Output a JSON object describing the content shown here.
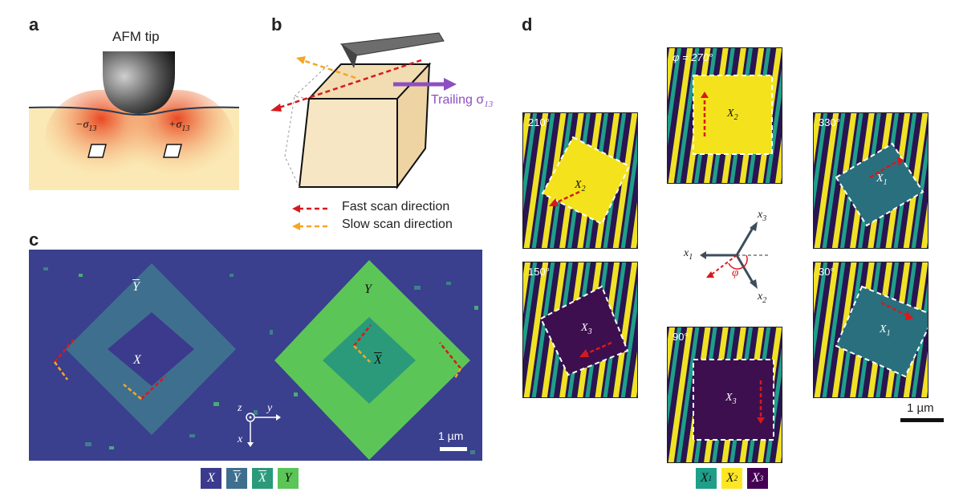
{
  "panels": {
    "a": {
      "label": "a",
      "tip_label": "AFM tip",
      "left_stress": "−σ",
      "left_stress_sub": "13",
      "right_stress": "+σ",
      "right_stress_sub": "13"
    },
    "b": {
      "label": "b",
      "trailing": "Trailing σ",
      "trailing_sub": "13",
      "fast_scan": "Fast scan direction",
      "slow_scan": "Slow scan direction",
      "fast_color": "#d7191c",
      "slow_color": "#f5a623"
    },
    "c": {
      "label": "c",
      "domains": {
        "ybar": "Y",
        "x": "X",
        "y": "Y",
        "xbar": "X"
      },
      "axes": {
        "z": "z",
        "y": "y",
        "x": "x"
      },
      "scale": "1 µm",
      "legend": [
        {
          "text": "X",
          "color": "#3b3a8c",
          "overline": false
        },
        {
          "text": "Y",
          "color": "#3f6f8f",
          "overline": true
        },
        {
          "text": "X",
          "color": "#2a9a7b",
          "overline": true
        },
        {
          "text": "Y",
          "color": "#5cc558",
          "overline": false
        }
      ]
    },
    "d": {
      "label": "d",
      "tiles": [
        {
          "angle": "φ = 270°",
          "variant": "X",
          "variant_sub": "2"
        },
        {
          "angle": "210°",
          "variant": "X",
          "variant_sub": "2"
        },
        {
          "angle": "330°",
          "variant": "X",
          "variant_sub": "1"
        },
        {
          "angle": "150°",
          "variant": "X",
          "variant_sub": "3"
        },
        {
          "angle": "30°",
          "variant": "X",
          "variant_sub": "1"
        },
        {
          "angle": "90°",
          "variant": "X",
          "variant_sub": "3"
        }
      ],
      "axes": {
        "x1": "x",
        "x1_sub": "1",
        "x2": "x",
        "x2_sub": "2",
        "x3": "x",
        "x3_sub": "3",
        "phi": "φ"
      },
      "scale": "1 µm",
      "legend": [
        {
          "text": "X",
          "sub": "1",
          "color": "#1f9e89"
        },
        {
          "text": "X",
          "sub": "2",
          "color": "#fde725"
        },
        {
          "text": "X",
          "sub": "3",
          "color": "#440154"
        }
      ]
    }
  }
}
